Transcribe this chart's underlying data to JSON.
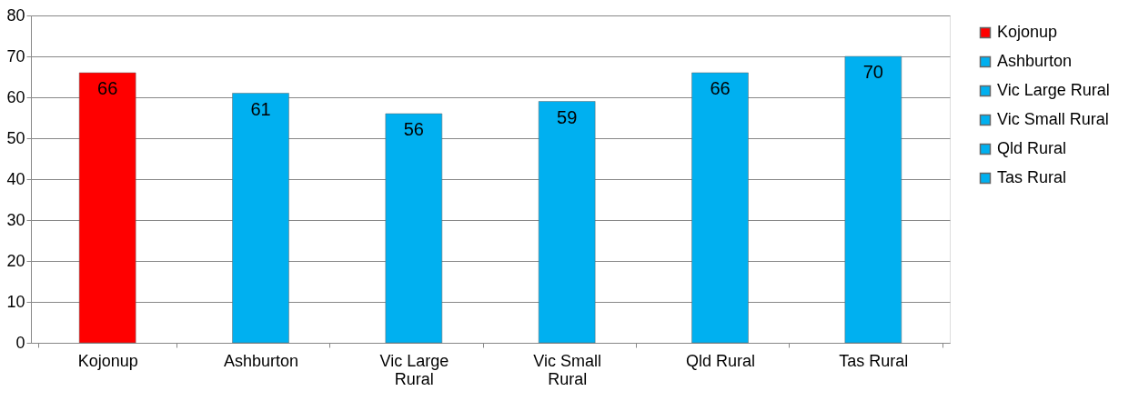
{
  "chart_data": {
    "type": "bar",
    "categories": [
      "Kojonup",
      "Ashburton",
      "Vic Large Rural",
      "Vic Small Rural",
      "Qld Rural",
      "Tas Rural"
    ],
    "series": [
      {
        "name": "Kojonup",
        "color": "#ff0000",
        "values": [
          66,
          null,
          null,
          null,
          null,
          null
        ]
      },
      {
        "name": "Ashburton",
        "color": "#00b0f0",
        "values": [
          null,
          61,
          null,
          null,
          null,
          null
        ]
      },
      {
        "name": "Vic Large Rural",
        "color": "#00b0f0",
        "values": [
          null,
          null,
          56,
          null,
          null,
          null
        ]
      },
      {
        "name": "Vic Small Rural",
        "color": "#00b0f0",
        "values": [
          null,
          null,
          null,
          59,
          null,
          null
        ]
      },
      {
        "name": "Qld Rural",
        "color": "#00b0f0",
        "values": [
          null,
          null,
          null,
          null,
          66,
          null
        ]
      },
      {
        "name": "Tas Rural",
        "color": "#00b0f0",
        "values": [
          null,
          null,
          null,
          null,
          null,
          70
        ]
      }
    ],
    "ylim": [
      0,
      80
    ],
    "yticks": [
      0,
      10,
      20,
      30,
      40,
      50,
      60,
      70,
      80
    ],
    "grid": "y",
    "legend": "right",
    "data_labels": true
  }
}
